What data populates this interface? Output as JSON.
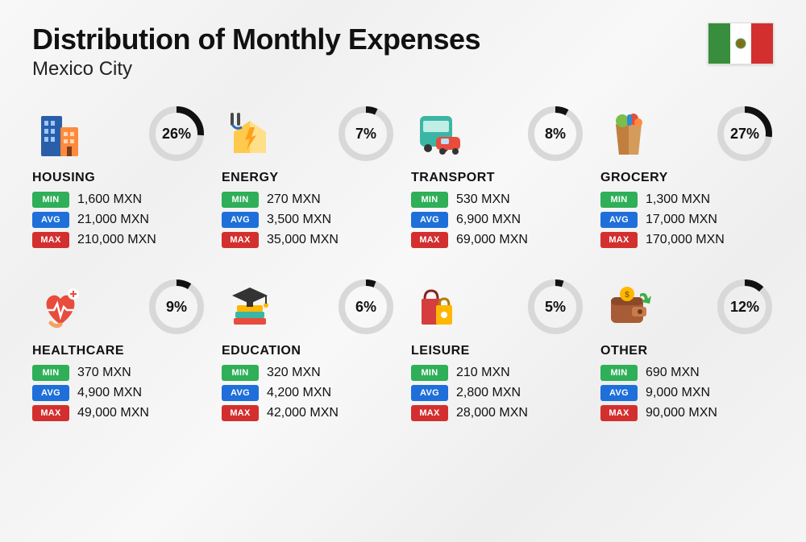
{
  "title": "Distribution of Monthly Expenses",
  "subtitle": "Mexico City",
  "flag": {
    "left": "#388e3c",
    "center": "#ffffff",
    "right": "#d32f2f"
  },
  "currency_suffix": "MXN",
  "badges": {
    "min": {
      "label": "MIN",
      "bg": "#2eaf58"
    },
    "avg": {
      "label": "AVG",
      "bg": "#1e6fd9"
    },
    "max": {
      "label": "MAX",
      "bg": "#d32f2f"
    }
  },
  "ring": {
    "track_color": "#d8d8d8",
    "progress_color": "#111111",
    "stroke_width": 8,
    "radius": 30,
    "size": 72
  },
  "categories": [
    {
      "key": "housing",
      "name": "HOUSING",
      "percent": 26,
      "min": "1,600",
      "avg": "21,000",
      "max": "210,000",
      "icon": "buildings-icon"
    },
    {
      "key": "energy",
      "name": "ENERGY",
      "percent": 7,
      "min": "270",
      "avg": "3,500",
      "max": "35,000",
      "icon": "energy-house-icon"
    },
    {
      "key": "transport",
      "name": "TRANSPORT",
      "percent": 8,
      "min": "530",
      "avg": "6,900",
      "max": "69,000",
      "icon": "bus-car-icon"
    },
    {
      "key": "grocery",
      "name": "GROCERY",
      "percent": 27,
      "min": "1,300",
      "avg": "17,000",
      "max": "170,000",
      "icon": "grocery-bag-icon"
    },
    {
      "key": "healthcare",
      "name": "HEALTHCARE",
      "percent": 9,
      "min": "370",
      "avg": "4,900",
      "max": "49,000",
      "icon": "heart-care-icon"
    },
    {
      "key": "education",
      "name": "EDUCATION",
      "percent": 6,
      "min": "320",
      "avg": "4,200",
      "max": "42,000",
      "icon": "graduation-books-icon"
    },
    {
      "key": "leisure",
      "name": "LEISURE",
      "percent": 5,
      "min": "210",
      "avg": "2,800",
      "max": "28,000",
      "icon": "shopping-bags-icon"
    },
    {
      "key": "other",
      "name": "OTHER",
      "percent": 12,
      "min": "690",
      "avg": "9,000",
      "max": "90,000",
      "icon": "wallet-arrow-icon"
    }
  ]
}
